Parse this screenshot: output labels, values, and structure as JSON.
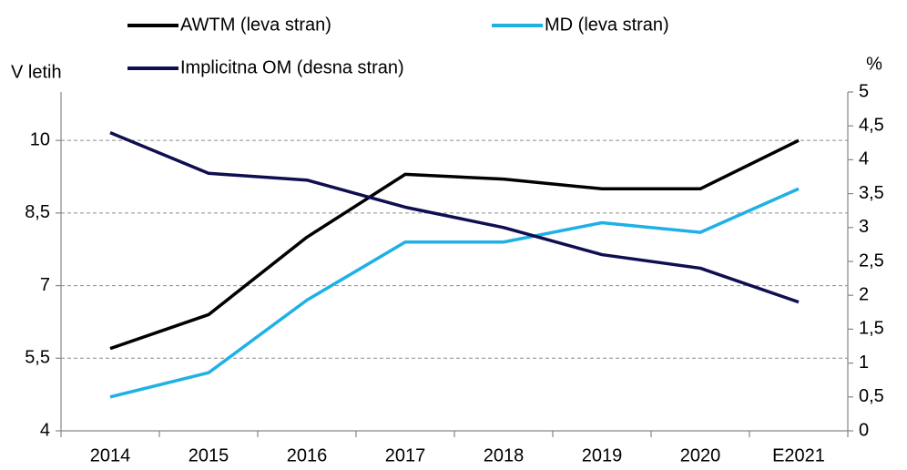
{
  "chart_data": {
    "type": "line",
    "ylabel": "V letih",
    "y2label": "%",
    "categories": [
      "2014",
      "2015",
      "2016",
      "2017",
      "2018",
      "2019",
      "2020",
      "E2021"
    ],
    "series": [
      {
        "name": "AWTM (leva stran)",
        "color": "#000000",
        "values": [
          5.7,
          6.4,
          8.0,
          9.3,
          9.2,
          9.0,
          9.0,
          10.0
        ]
      },
      {
        "name": "MD (leva stran)",
        "color": "#1fb0e6",
        "values": [
          4.7,
          5.2,
          6.7,
          7.9,
          7.9,
          8.3,
          8.1,
          9.0
        ]
      },
      {
        "name": "Implicitna OM (desna stran)",
        "color": "#0e0e50",
        "axis": "y2",
        "values": [
          4.4,
          3.8,
          3.7,
          3.3,
          3.0,
          2.6,
          2.4,
          1.9
        ]
      }
    ],
    "ylim": [
      4,
      11
    ],
    "yticks": [
      4,
      {
        "value": 5.5,
        "label": "5,5"
      },
      7,
      {
        "value": 8.5,
        "label": "8,5"
      },
      10
    ],
    "y2lim": [
      0,
      5
    ],
    "y2ticks": [
      0,
      {
        "value": 0.5,
        "label": "0,5"
      },
      1,
      {
        "value": 1.5,
        "label": "1,5"
      },
      2,
      {
        "value": 2.5,
        "label": "2,5"
      },
      3,
      {
        "value": 3.5,
        "label": "3,5"
      },
      4,
      {
        "value": 4.5,
        "label": "4,5"
      },
      5
    ],
    "grid": true
  }
}
